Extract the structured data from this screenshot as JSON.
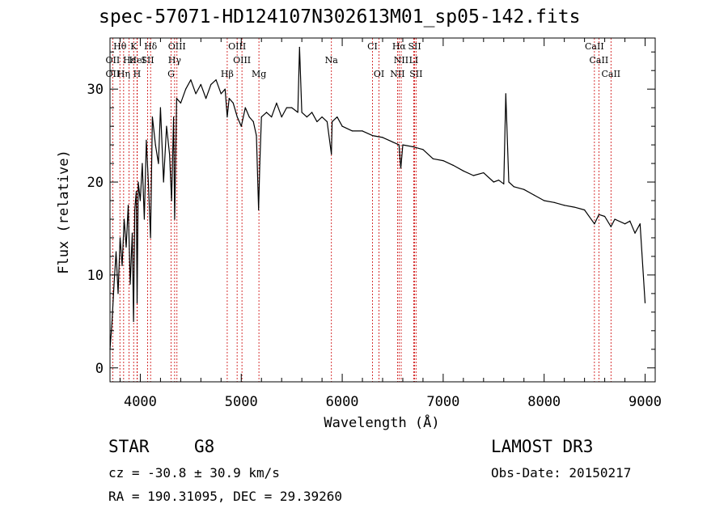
{
  "chart_data": {
    "type": "line",
    "title": "spec-57071-HD124107N302613M01_sp05-142.fits",
    "xlabel": "Wavelength (Å)",
    "ylabel": "Flux (relative)",
    "xlim": [
      3700,
      9100
    ],
    "ylim": [
      -1.5,
      35.5
    ],
    "x_ticks": [
      4000,
      5000,
      6000,
      7000,
      8000,
      9000
    ],
    "y_ticks": [
      0,
      10,
      20,
      30
    ],
    "x_tick_labels": [
      "4000",
      "5000",
      "6000",
      "7000",
      "8000",
      "9000"
    ],
    "y_tick_labels": [
      "0",
      "10",
      "20",
      "30"
    ],
    "series": [
      {
        "name": "spectrum",
        "x": [
          3700,
          3720,
          3740,
          3760,
          3780,
          3800,
          3820,
          3840,
          3860,
          3880,
          3900,
          3920,
          3933,
          3945,
          3960,
          3968,
          3980,
          4000,
          4020,
          4040,
          4060,
          4080,
          4101,
          4120,
          4150,
          4180,
          4200,
          4230,
          4260,
          4290,
          4310,
          4330,
          4340,
          4360,
          4400,
          4450,
          4500,
          4550,
          4600,
          4650,
          4700,
          4750,
          4800,
          4840,
          4861,
          4880,
          4920,
          4960,
          5000,
          5040,
          5080,
          5120,
          5150,
          5172,
          5184,
          5200,
          5250,
          5300,
          5350,
          5400,
          5450,
          5500,
          5560,
          5577,
          5600,
          5650,
          5700,
          5750,
          5800,
          5850,
          5893,
          5900,
          5950,
          6000,
          6100,
          6200,
          6300,
          6400,
          6500,
          6563,
          6580,
          6600,
          6700,
          6800,
          6900,
          7000,
          7100,
          7200,
          7300,
          7400,
          7500,
          7550,
          7600,
          7620,
          7650,
          7700,
          7800,
          7900,
          8000,
          8100,
          8200,
          8300,
          8400,
          8498,
          8542,
          8600,
          8662,
          8700,
          8800,
          8850,
          8900,
          8950,
          9000
        ],
        "y": [
          2.0,
          5.0,
          9.0,
          12.5,
          8.0,
          14.0,
          11.0,
          16.0,
          13.0,
          17.5,
          9.0,
          14.5,
          5.0,
          17.0,
          19.0,
          7.0,
          20.0,
          18.0,
          22.0,
          16.0,
          24.5,
          20.0,
          14.0,
          27.0,
          24.0,
          22.0,
          28.0,
          20.0,
          26.0,
          23.0,
          18.0,
          27.0,
          16.0,
          29.0,
          28.5,
          30.0,
          31.0,
          29.5,
          30.5,
          29.0,
          30.5,
          31.0,
          29.5,
          30.0,
          27.0,
          29.0,
          28.5,
          27.0,
          26.0,
          28.0,
          27.0,
          26.5,
          25.0,
          17.0,
          22.0,
          27.0,
          27.5,
          27.0,
          28.5,
          27.0,
          28.0,
          28.0,
          27.5,
          34.5,
          27.5,
          27.0,
          27.5,
          26.5,
          27.0,
          26.5,
          23.0,
          26.5,
          27.0,
          26.0,
          25.5,
          25.5,
          25.0,
          24.8,
          24.3,
          24.0,
          21.5,
          24.0,
          23.8,
          23.5,
          22.5,
          22.3,
          21.8,
          21.2,
          20.7,
          21.0,
          20.0,
          20.2,
          19.8,
          29.5,
          20.0,
          19.5,
          19.2,
          18.6,
          18.0,
          17.8,
          17.5,
          17.3,
          17.0,
          15.5,
          16.5,
          16.3,
          15.2,
          16.0,
          15.5,
          15.8,
          14.5,
          15.5,
          7.0
        ]
      }
    ],
    "lines": {
      "row1": [
        {
          "label": "Hθ",
          "wave": 3798
        },
        {
          "label": "K",
          "wave": 3934
        },
        {
          "label": "Hδ",
          "wave": 4102
        },
        {
          "label": "OIII",
          "wave": 4363
        },
        {
          "label": "OIII",
          "wave": 4959
        },
        {
          "label": "CI",
          "wave": 6300
        },
        {
          "label": "Hα",
          "wave": 6563
        },
        {
          "label": "SII",
          "wave": 6717
        },
        {
          "label": "CaII",
          "wave": 8498
        }
      ],
      "row2": [
        {
          "label": "OII",
          "wave": 3727
        },
        {
          "label": "Hε",
          "wave": 3889
        },
        {
          "label": "HeI",
          "wave": 3970
        },
        {
          "label": "SII",
          "wave": 4072
        },
        {
          "label": "Hγ",
          "wave": 4340
        },
        {
          "label": "OIII",
          "wave": 5007
        },
        {
          "label": "Na",
          "wave": 5893
        },
        {
          "label": "NII",
          "wave": 6584
        },
        {
          "label": "LI",
          "wave": 6708
        },
        {
          "label": "CaII",
          "wave": 8542
        }
      ],
      "row3": [
        {
          "label": "OII",
          "wave": 3727
        },
        {
          "label": "Hη",
          "wave": 3835
        },
        {
          "label": "H",
          "wave": 3968
        },
        {
          "label": "G",
          "wave": 4305
        },
        {
          "label": "Hβ",
          "wave": 4861
        },
        {
          "label": "Mg",
          "wave": 5175
        },
        {
          "label": "OI",
          "wave": 6364
        },
        {
          "label": "NII",
          "wave": 6548
        },
        {
          "label": "SII",
          "wave": 6731
        },
        {
          "label": "CaII",
          "wave": 8662
        }
      ]
    },
    "line_color": "#cc0000"
  },
  "info": {
    "class": "STAR",
    "subclass": "G8",
    "cz": "cz = -30.8 ± 30.9 km/s",
    "coords": "RA = 190.31095, DEC =  29.39260",
    "survey": "LAMOST DR3",
    "obs_date": "Obs-Date: 20150217"
  }
}
